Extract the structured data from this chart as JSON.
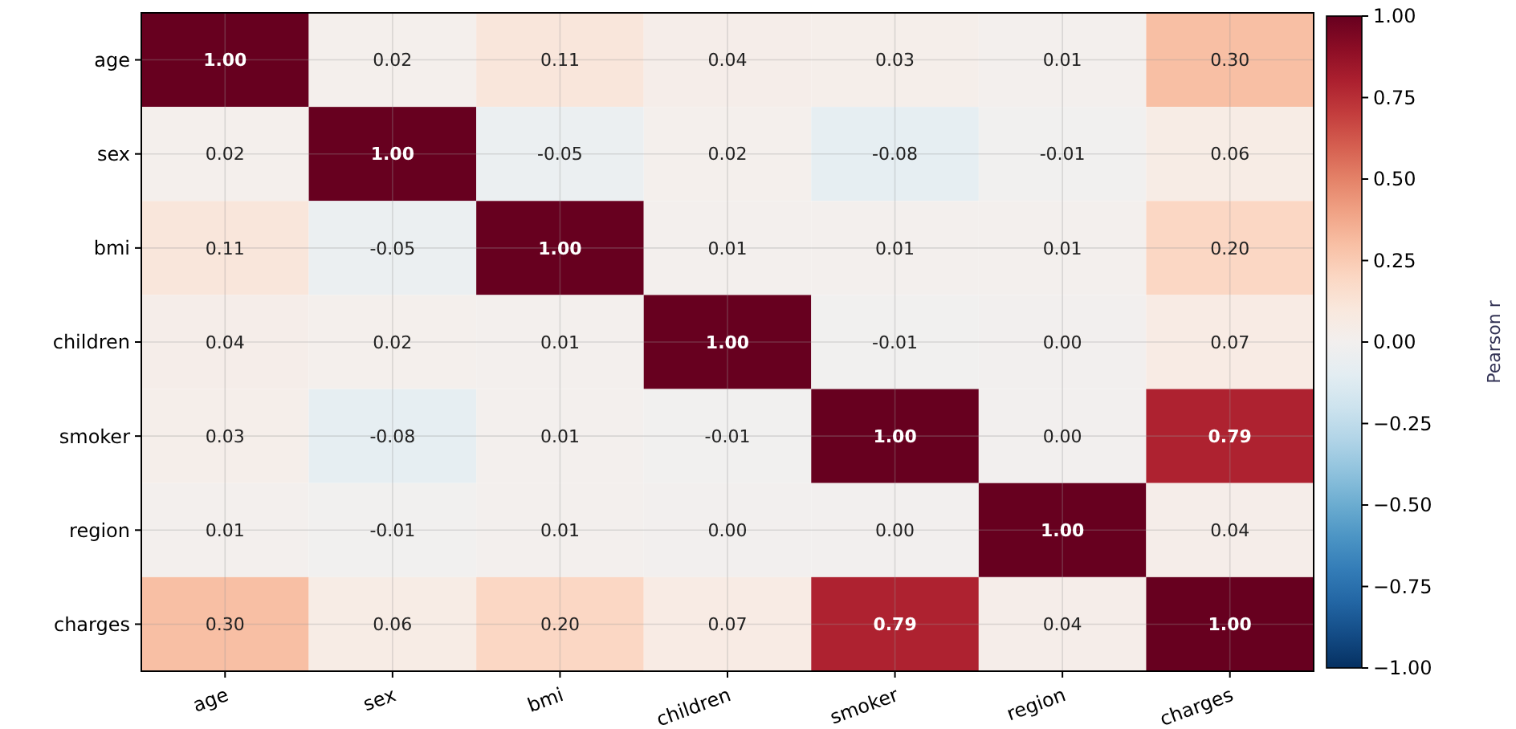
{
  "chart_data": {
    "type": "heatmap",
    "categories": [
      "age",
      "sex",
      "bmi",
      "children",
      "smoker",
      "region",
      "charges"
    ],
    "y_categories": [
      "age",
      "sex",
      "bmi",
      "children",
      "smoker",
      "region",
      "charges"
    ],
    "cells": [
      [
        1,
        0.02,
        0.11,
        0.04,
        0.03,
        0.01,
        0.3
      ],
      [
        0.02,
        1,
        -0.05,
        0.02,
        -0.08,
        -0.01,
        0.06
      ],
      [
        0.11,
        -0.05,
        1,
        0.01,
        0.01,
        0.01,
        0.2
      ],
      [
        0.04,
        0.02,
        0.01,
        1,
        -0.01,
        0.0,
        0.07
      ],
      [
        0.03,
        -0.08,
        0.01,
        -0.01,
        1,
        0.0,
        0.79
      ],
      [
        0.01,
        -0.01,
        0.01,
        0.0,
        0.0,
        1,
        0.04
      ],
      [
        0.3,
        0.06,
        0.2,
        0.07,
        0.79,
        0.04,
        1
      ]
    ],
    "cell_labels": [
      [
        "1.00",
        "0.02",
        "0.11",
        "0.04",
        "0.03",
        "0.01",
        "0.30"
      ],
      [
        "0.02",
        "1.00",
        "-0.05",
        "0.02",
        "-0.08",
        "-0.01",
        "0.06"
      ],
      [
        "0.11",
        "-0.05",
        "1.00",
        "0.01",
        "0.01",
        "0.01",
        "0.20"
      ],
      [
        "0.04",
        "0.02",
        "0.01",
        "1.00",
        "-0.01",
        "0.00",
        "0.07"
      ],
      [
        "0.03",
        "-0.08",
        "0.01",
        "-0.01",
        "1.00",
        "0.00",
        "0.79"
      ],
      [
        "0.01",
        "-0.01",
        "0.01",
        "0.00",
        "0.00",
        "1.00",
        "0.04"
      ],
      [
        "0.30",
        "0.06",
        "0.20",
        "0.07",
        "0.79",
        "0.04",
        "1.00"
      ]
    ],
    "clim": [
      -1,
      1
    ],
    "cticks": [
      {
        "value": 1,
        "label": "1.00"
      },
      {
        "value": 0.75,
        "label": "0.75"
      },
      {
        "value": 0.5,
        "label": "0.50"
      },
      {
        "value": 0.25,
        "label": "0.25"
      },
      {
        "value": 0,
        "label": "0.00"
      },
      {
        "value": -0.25,
        "label": "−0.25"
      },
      {
        "value": -0.5,
        "label": "−0.50"
      },
      {
        "value": -0.75,
        "label": "−0.75"
      },
      {
        "value": -1,
        "label": "−1.00"
      }
    ],
    "clabel": "Pearson r",
    "grid": true
  }
}
